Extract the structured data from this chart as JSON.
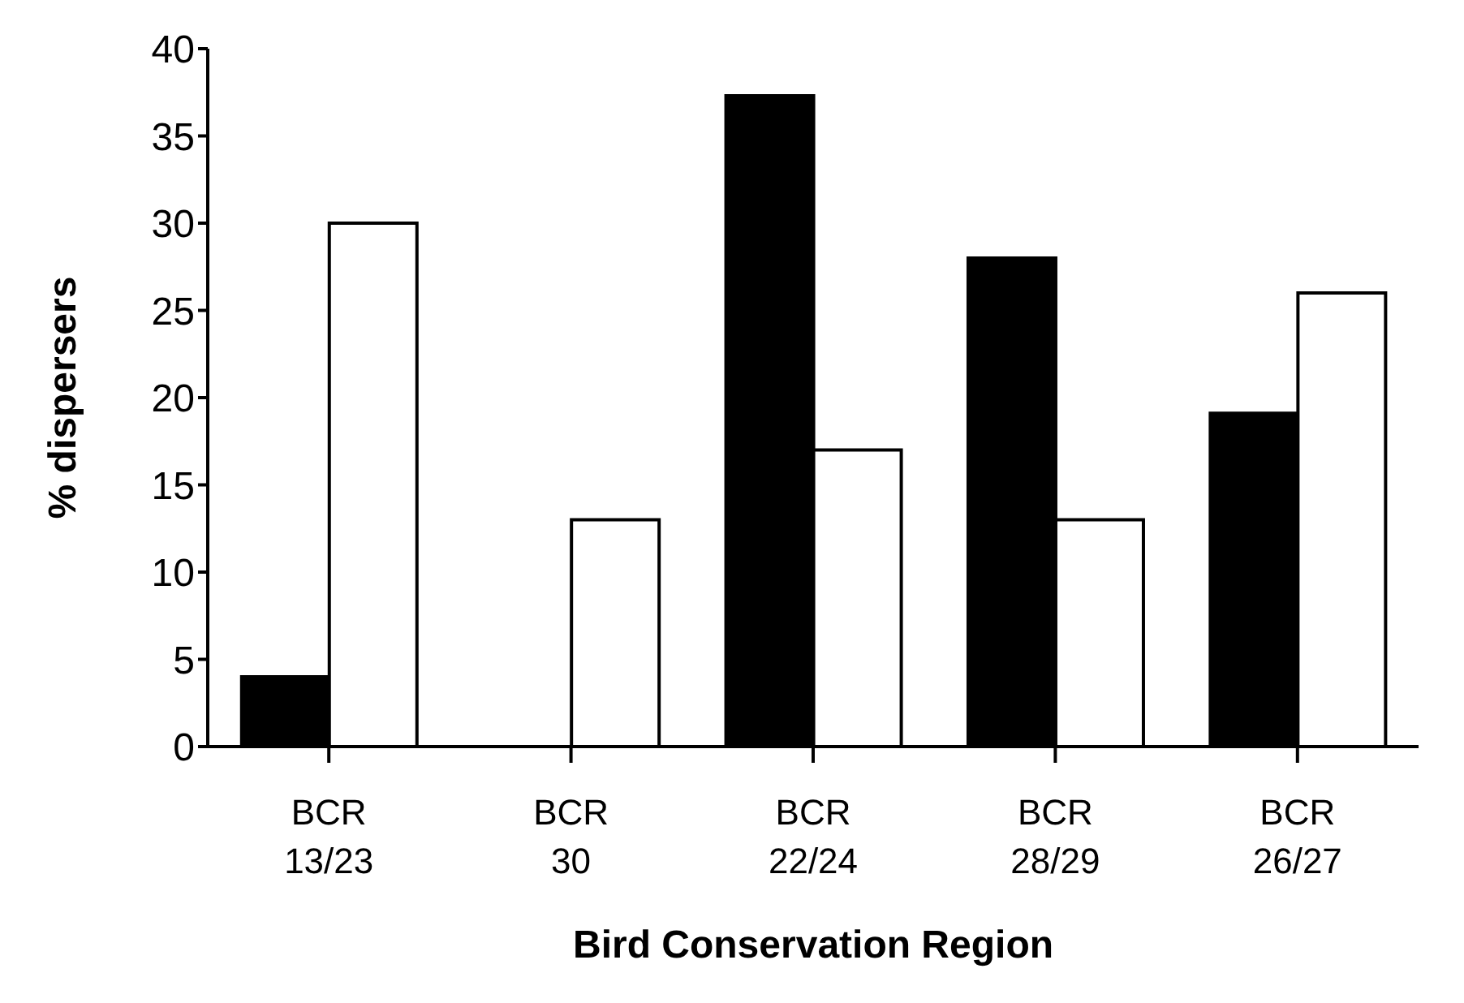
{
  "chart_data": {
    "type": "bar",
    "xlabel": "Bird Conservation Region",
    "ylabel": "% dispersers",
    "categories": [
      "BCR 13/23",
      "BCR 30",
      "BCR 22/24",
      "BCR 28/29",
      "BCR 26/27"
    ],
    "series": [
      {
        "color": "#000000",
        "values": [
          4,
          0,
          37.3,
          28,
          19.1
        ]
      },
      {
        "color": "#ffffff",
        "values": [
          30,
          13,
          17,
          13,
          26
        ]
      }
    ],
    "ylim": [
      0,
      40
    ],
    "yticks": [
      0,
      5,
      10,
      15,
      20,
      25,
      30,
      35,
      40
    ],
    "grid": false,
    "legend": false
  }
}
